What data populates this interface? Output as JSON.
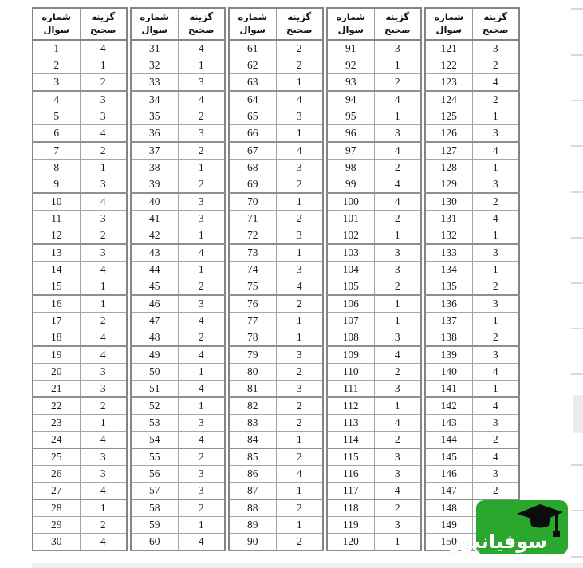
{
  "headers": {
    "question": "شماره سوال",
    "answer": "گزینه صحیح"
  },
  "tables": [
    {
      "rows": [
        [
          "1",
          "4"
        ],
        [
          "2",
          "1"
        ],
        [
          "3",
          "2"
        ],
        [
          "4",
          "3"
        ],
        [
          "5",
          "3"
        ],
        [
          "6",
          "4"
        ],
        [
          "7",
          "2"
        ],
        [
          "8",
          "1"
        ],
        [
          "9",
          "3"
        ],
        [
          "10",
          "4"
        ],
        [
          "11",
          "3"
        ],
        [
          "12",
          "2"
        ],
        [
          "13",
          "3"
        ],
        [
          "14",
          "4"
        ],
        [
          "15",
          "1"
        ],
        [
          "16",
          "1"
        ],
        [
          "17",
          "2"
        ],
        [
          "18",
          "4"
        ],
        [
          "19",
          "4"
        ],
        [
          "20",
          "3"
        ],
        [
          "21",
          "3"
        ],
        [
          "22",
          "2"
        ],
        [
          "23",
          "1"
        ],
        [
          "24",
          "4"
        ],
        [
          "25",
          "3"
        ],
        [
          "26",
          "3"
        ],
        [
          "27",
          "4"
        ],
        [
          "28",
          "1"
        ],
        [
          "29",
          "2"
        ],
        [
          "30",
          "4"
        ]
      ]
    },
    {
      "rows": [
        [
          "31",
          "4"
        ],
        [
          "32",
          "1"
        ],
        [
          "33",
          "3"
        ],
        [
          "34",
          "4"
        ],
        [
          "35",
          "2"
        ],
        [
          "36",
          "3"
        ],
        [
          "37",
          "2"
        ],
        [
          "38",
          "1"
        ],
        [
          "39",
          "2"
        ],
        [
          "40",
          "3"
        ],
        [
          "41",
          "3"
        ],
        [
          "42",
          "1"
        ],
        [
          "43",
          "4"
        ],
        [
          "44",
          "1"
        ],
        [
          "45",
          "2"
        ],
        [
          "46",
          "3"
        ],
        [
          "47",
          "4"
        ],
        [
          "48",
          "2"
        ],
        [
          "49",
          "4"
        ],
        [
          "50",
          "1"
        ],
        [
          "51",
          "4"
        ],
        [
          "52",
          "1"
        ],
        [
          "53",
          "3"
        ],
        [
          "54",
          "4"
        ],
        [
          "55",
          "2"
        ],
        [
          "56",
          "3"
        ],
        [
          "57",
          "3"
        ],
        [
          "58",
          "2"
        ],
        [
          "59",
          "1"
        ],
        [
          "60",
          "4"
        ]
      ]
    },
    {
      "rows": [
        [
          "61",
          "2"
        ],
        [
          "62",
          "2"
        ],
        [
          "63",
          "1"
        ],
        [
          "64",
          "4"
        ],
        [
          "65",
          "3"
        ],
        [
          "66",
          "1"
        ],
        [
          "67",
          "4"
        ],
        [
          "68",
          "3"
        ],
        [
          "69",
          "2"
        ],
        [
          "70",
          "1"
        ],
        [
          "71",
          "2"
        ],
        [
          "72",
          "3"
        ],
        [
          "73",
          "1"
        ],
        [
          "74",
          "3"
        ],
        [
          "75",
          "4"
        ],
        [
          "76",
          "2"
        ],
        [
          "77",
          "1"
        ],
        [
          "78",
          "1"
        ],
        [
          "79",
          "3"
        ],
        [
          "80",
          "2"
        ],
        [
          "81",
          "3"
        ],
        [
          "82",
          "2"
        ],
        [
          "83",
          "2"
        ],
        [
          "84",
          "1"
        ],
        [
          "85",
          "2"
        ],
        [
          "86",
          "4"
        ],
        [
          "87",
          "1"
        ],
        [
          "88",
          "2"
        ],
        [
          "89",
          "1"
        ],
        [
          "90",
          "2"
        ]
      ]
    },
    {
      "rows": [
        [
          "91",
          "3"
        ],
        [
          "92",
          "1"
        ],
        [
          "93",
          "2"
        ],
        [
          "94",
          "4"
        ],
        [
          "95",
          "1"
        ],
        [
          "96",
          "3"
        ],
        [
          "97",
          "4"
        ],
        [
          "98",
          "2"
        ],
        [
          "99",
          "4"
        ],
        [
          "100",
          "4"
        ],
        [
          "101",
          "2"
        ],
        [
          "102",
          "1"
        ],
        [
          "103",
          "3"
        ],
        [
          "104",
          "3"
        ],
        [
          "105",
          "2"
        ],
        [
          "106",
          "1"
        ],
        [
          "107",
          "1"
        ],
        [
          "108",
          "3"
        ],
        [
          "109",
          "4"
        ],
        [
          "110",
          "2"
        ],
        [
          "111",
          "3"
        ],
        [
          "112",
          "1"
        ],
        [
          "113",
          "4"
        ],
        [
          "114",
          "2"
        ],
        [
          "115",
          "3"
        ],
        [
          "116",
          "3"
        ],
        [
          "117",
          "4"
        ],
        [
          "118",
          "2"
        ],
        [
          "119",
          "3"
        ],
        [
          "120",
          "1"
        ]
      ]
    },
    {
      "rows": [
        [
          "121",
          "3"
        ],
        [
          "122",
          "2"
        ],
        [
          "123",
          "4"
        ],
        [
          "124",
          "2"
        ],
        [
          "125",
          "1"
        ],
        [
          "126",
          "3"
        ],
        [
          "127",
          "4"
        ],
        [
          "128",
          "1"
        ],
        [
          "129",
          "3"
        ],
        [
          "130",
          "2"
        ],
        [
          "131",
          "4"
        ],
        [
          "132",
          "1"
        ],
        [
          "133",
          "3"
        ],
        [
          "134",
          "1"
        ],
        [
          "135",
          "2"
        ],
        [
          "136",
          "3"
        ],
        [
          "137",
          "1"
        ],
        [
          "138",
          "2"
        ],
        [
          "139",
          "3"
        ],
        [
          "140",
          "4"
        ],
        [
          "141",
          "1"
        ],
        [
          "142",
          "4"
        ],
        [
          "143",
          "3"
        ],
        [
          "144",
          "2"
        ],
        [
          "145",
          "4"
        ],
        [
          "146",
          "3"
        ],
        [
          "147",
          "2"
        ],
        [
          "148",
          ""
        ],
        [
          "149",
          ""
        ],
        [
          "150",
          "2"
        ]
      ]
    }
  ],
  "watermark": {
    "text": "سوفیانیوز",
    "bg_color": "#2aa82d",
    "cap_color": "#0d0d0d",
    "text_color": "#ffffff"
  }
}
